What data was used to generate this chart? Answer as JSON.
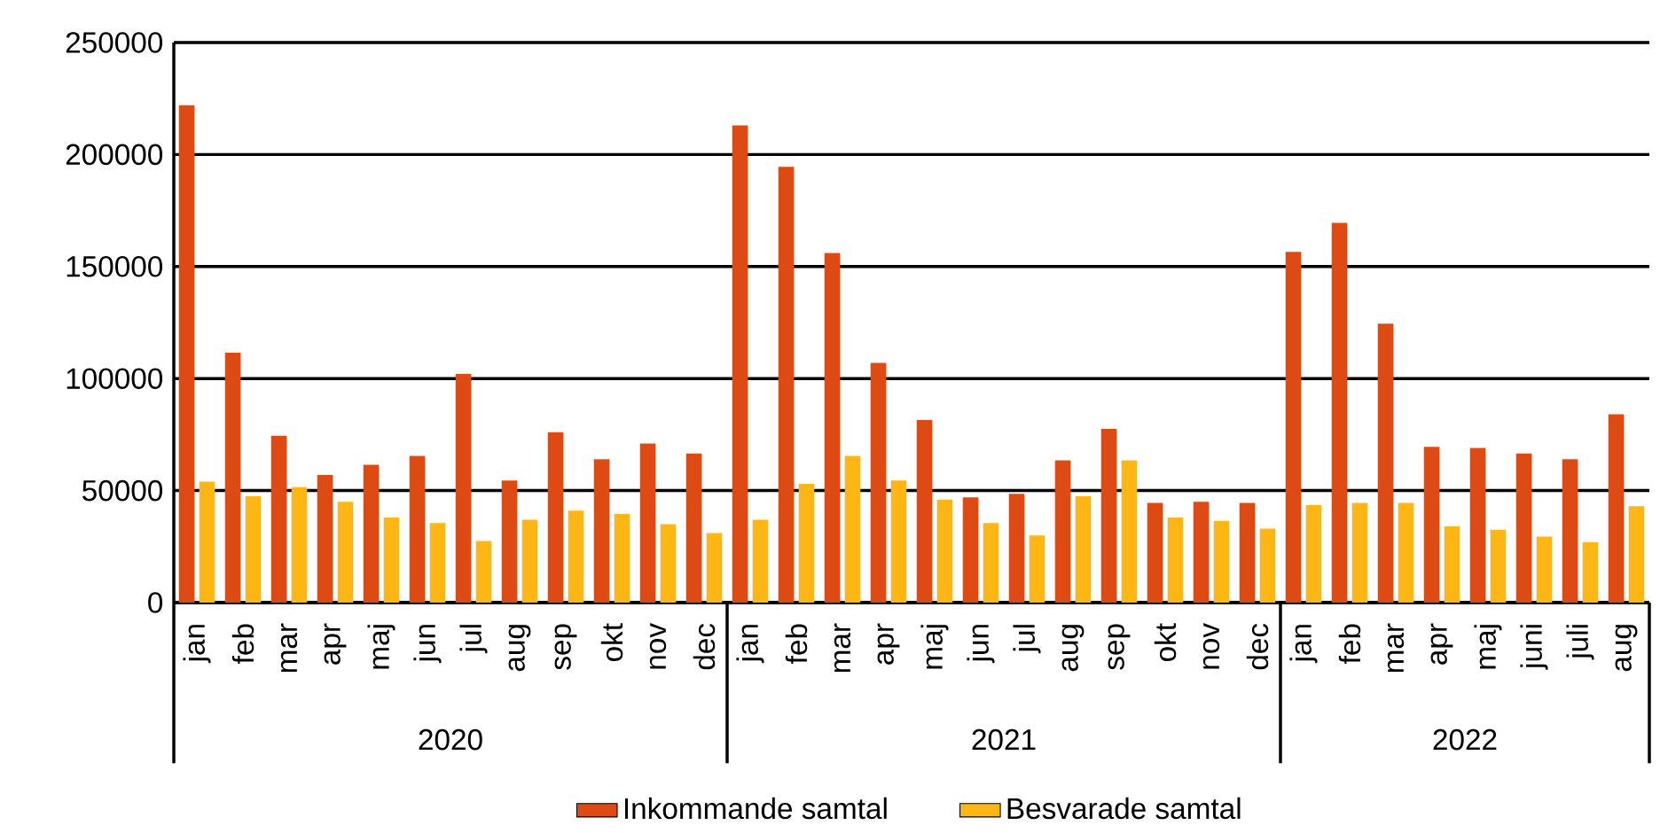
{
  "chart_data": {
    "type": "bar",
    "categories": [
      "jan",
      "feb",
      "mar",
      "apr",
      "maj",
      "jun",
      "jul",
      "aug",
      "sep",
      "okt",
      "nov",
      "dec",
      "jan",
      "feb",
      "mar",
      "apr",
      "maj",
      "jun",
      "jul",
      "aug",
      "sep",
      "okt",
      "nov",
      "dec",
      "jan",
      "feb",
      "mar",
      "apr",
      "maj",
      "juni",
      "juli",
      "aug"
    ],
    "series": [
      {
        "name": "Inkommande samtal",
        "color": "#dd4a14",
        "values": [
          222000,
          111500,
          74500,
          57000,
          61500,
          65500,
          102000,
          54500,
          76000,
          64000,
          71000,
          66500,
          213000,
          194500,
          156000,
          107000,
          81500,
          47000,
          48500,
          63500,
          77500,
          44500,
          45000,
          44500,
          156500,
          169500,
          124500,
          69500,
          69000,
          66500,
          64000,
          84000
        ]
      },
      {
        "name": "Besvarade samtal",
        "color": "#fdb614",
        "values": [
          54000,
          47500,
          51500,
          45000,
          38000,
          35500,
          27500,
          37000,
          41000,
          39500,
          35000,
          31000,
          37000,
          53000,
          65500,
          54500,
          46000,
          35500,
          30000,
          47500,
          63500,
          38000,
          36500,
          33000,
          43500,
          44500,
          44500,
          34000,
          32500,
          29500,
          27000,
          43000
        ]
      }
    ],
    "ylim": [
      0,
      250000
    ],
    "yticks": [
      0,
      50000,
      100000,
      150000,
      200000,
      250000
    ],
    "grid": "y",
    "legend": "bottom",
    "annotations": [
      "2020",
      "2021",
      "2022"
    ]
  }
}
